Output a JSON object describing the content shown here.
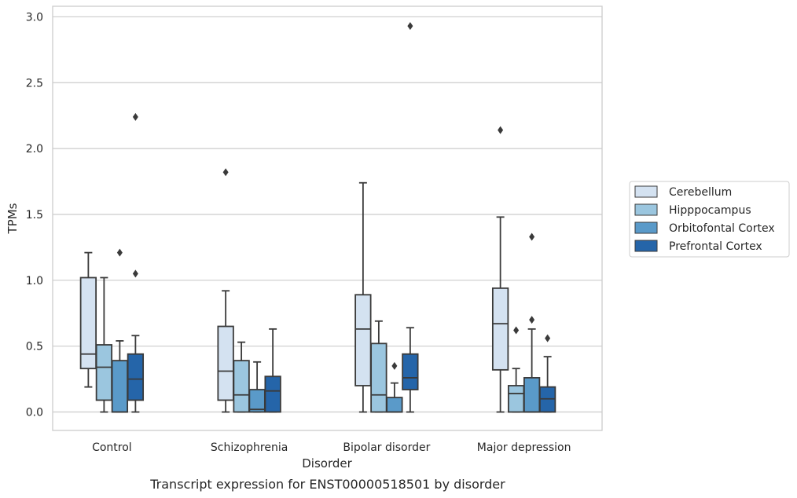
{
  "caption": "Transcript expression for ENST00000518501 by disorder",
  "chart_data": {
    "type": "box",
    "xlabel": "Disorder",
    "ylabel": "TPMs",
    "ylim": [
      -0.14,
      3.08
    ],
    "yticks": [
      0.0,
      0.5,
      1.0,
      1.5,
      2.0,
      2.5,
      3.0
    ],
    "ytick_labels": [
      "0.0",
      "0.5",
      "1.0",
      "1.5",
      "2.0",
      "2.5",
      "3.0"
    ],
    "grid": "horizontal",
    "legend_position": "right",
    "categories": [
      "Control",
      "Schizophrenia",
      "Bipolar disorder",
      "Major depression"
    ],
    "series": [
      {
        "name": "Cerebellum",
        "color": "#d4e2f1",
        "boxes": [
          {
            "whisker_low": 0.19,
            "q1": 0.33,
            "median": 0.44,
            "q3": 1.02,
            "whisker_high": 1.21,
            "outliers": []
          },
          {
            "whisker_low": 0.0,
            "q1": 0.09,
            "median": 0.31,
            "q3": 0.65,
            "whisker_high": 0.92,
            "outliers": [
              1.82
            ]
          },
          {
            "whisker_low": 0.0,
            "q1": 0.2,
            "median": 0.63,
            "q3": 0.89,
            "whisker_high": 1.74,
            "outliers": []
          },
          {
            "whisker_low": 0.0,
            "q1": 0.32,
            "median": 0.67,
            "q3": 0.94,
            "whisker_high": 1.48,
            "outliers": [
              2.14
            ]
          }
        ]
      },
      {
        "name": "Hipppocampus",
        "color": "#9bc6df",
        "boxes": [
          {
            "whisker_low": 0.0,
            "q1": 0.09,
            "median": 0.34,
            "q3": 0.51,
            "whisker_high": 1.02,
            "outliers": []
          },
          {
            "whisker_low": 0.0,
            "q1": 0.0,
            "median": 0.13,
            "q3": 0.39,
            "whisker_high": 0.53,
            "outliers": []
          },
          {
            "whisker_low": 0.0,
            "q1": 0.0,
            "median": 0.13,
            "q3": 0.52,
            "whisker_high": 0.69,
            "outliers": []
          },
          {
            "whisker_low": 0.0,
            "q1": 0.0,
            "median": 0.14,
            "q3": 0.2,
            "whisker_high": 0.33,
            "outliers": [
              0.62
            ]
          }
        ]
      },
      {
        "name": "Orbitofontal Cortex",
        "color": "#5a9ac9",
        "boxes": [
          {
            "whisker_low": 0.0,
            "q1": 0.0,
            "median": 0.0,
            "q3": 0.39,
            "whisker_high": 0.54,
            "outliers": [
              1.21
            ]
          },
          {
            "whisker_low": 0.0,
            "q1": 0.0,
            "median": 0.02,
            "q3": 0.17,
            "whisker_high": 0.38,
            "outliers": []
          },
          {
            "whisker_low": 0.0,
            "q1": 0.0,
            "median": 0.0,
            "q3": 0.11,
            "whisker_high": 0.22,
            "outliers": [
              0.35
            ]
          },
          {
            "whisker_low": 0.0,
            "q1": 0.0,
            "median": 0.0,
            "q3": 0.26,
            "whisker_high": 0.63,
            "outliers": [
              0.7,
              1.33
            ]
          }
        ]
      },
      {
        "name": "Prefrontal Cortex",
        "color": "#2565a9",
        "boxes": [
          {
            "whisker_low": 0.0,
            "q1": 0.09,
            "median": 0.25,
            "q3": 0.44,
            "whisker_high": 0.58,
            "outliers": [
              1.05,
              2.24
            ]
          },
          {
            "whisker_low": 0.0,
            "q1": 0.0,
            "median": 0.16,
            "q3": 0.27,
            "whisker_high": 0.63,
            "outliers": []
          },
          {
            "whisker_low": 0.0,
            "q1": 0.17,
            "median": 0.26,
            "q3": 0.44,
            "whisker_high": 0.64,
            "outliers": [
              2.93
            ]
          },
          {
            "whisker_low": 0.0,
            "q1": 0.0,
            "median": 0.1,
            "q3": 0.19,
            "whisker_high": 0.42,
            "outliers": [
              0.56
            ]
          }
        ]
      }
    ]
  }
}
